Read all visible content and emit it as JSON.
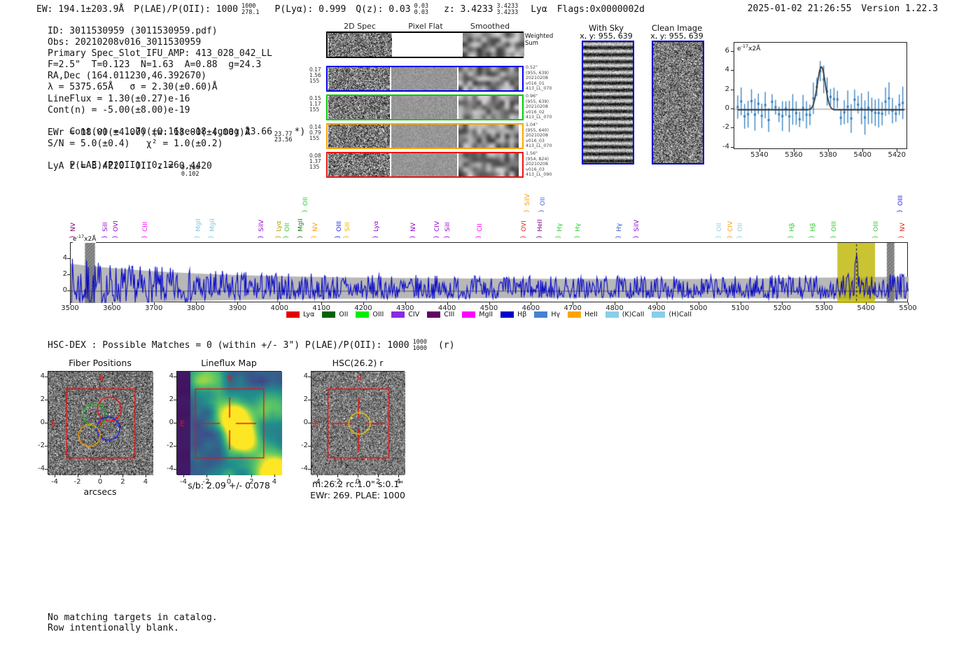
{
  "header": {
    "ew": "EW: 194.1±203.9Å",
    "plae_label": "P(LAE)/P(OII): 1000",
    "plae_hi": "1000",
    "plae_lo": "278.1",
    "plya": "P(Lyα): 0.999",
    "qz": "Q(z): 0.03",
    "qz_hi": "0.03",
    "qz_lo": "0.03",
    "z": "z: 3.4233",
    "z_hi": "3.4233",
    "z_lo": "3.4233",
    "line_type": "Lyα",
    "flags": "Flags:0x0000002d",
    "datetime": "2025-01-02 21:26:55",
    "version": "Version 1.22.3"
  },
  "info": {
    "id_line": "ID: 3011530959 (3011530959.pdf)",
    "obs_line": "Obs: 20210208v016_3011530959",
    "primary_line": "Primary Spec_Slot_IFU_AMP: 413_028_042_LL",
    "photometry_line": "F=2.5\"  T=0.123  N=1.63  A=0.88  g=24.3",
    "radec_line": "RA,Dec (164.011230,46.392670)",
    "lambda_line": "λ = 5375.65Å   σ = 2.30(±0.60)Å",
    "lineflux_line": "LineFlux = 1.30(±0.27)e-16",
    "contn_line": "Cont(n) = -5.00(±8.00)e-19",
    "contw_prefix": "Cont(w) = 1.70(±0.16)e-18 (gmag 23.66",
    "contw_hi": "23.77",
    "contw_lo": "23.56",
    "contw_suffix": "*)",
    "ewr_line": "EWr = 18.00(±4.00) (w: 18.00(±4.00))Å",
    "sn_line": "S/N = 5.0(±0.4)   χ² = 1.0(±0.2)",
    "plae_prefix": "P(LAE)/P(OII): 0.126",
    "plae_hi": "0.164",
    "plae_lo": "0.102",
    "z_line": "LyA z = 3.4220  OII z = 0.4420"
  },
  "cutout_grid": {
    "col_headers": [
      "2D Spec",
      "Pixel Flat",
      "Smoothed"
    ],
    "weighted_label": [
      "Weighted",
      "Sum"
    ],
    "rows": [
      {
        "color": "#0000ee",
        "left": [
          "0.17",
          "1.56",
          "155"
        ],
        "right": [
          "0.52\"",
          "(955, 639)",
          "20210208",
          "v016_01",
          "413_LL_070"
        ]
      },
      {
        "color": "#00cc00",
        "left": [
          "0.15",
          "1.17",
          "155"
        ],
        "right": [
          "0.96\"",
          "(955, 639)",
          "20210208",
          "v016_02",
          "413_LL_070"
        ]
      },
      {
        "color": "#ffa500",
        "left": [
          "0.14",
          "0.79",
          "155"
        ],
        "right": [
          "1.04\"",
          "(955, 640)",
          "20210208",
          "v016_03",
          "413_LL_070"
        ]
      },
      {
        "color": "#ee1111",
        "left": [
          "0.08",
          "1.37",
          "135"
        ],
        "right": [
          "1.56\"",
          "(954, 824)",
          "20210208",
          "v016_03",
          "413_LL_090"
        ]
      }
    ]
  },
  "sky_panels": {
    "with_sky": {
      "title": "With Sky",
      "coords": "x, y: 955, 639"
    },
    "clean": {
      "title": "Clean Image",
      "coords": "x, y: 955, 639"
    }
  },
  "hsc_dex_line": {
    "prefix": "HSC-DEX : Possible Matches = 0 (within +/- 3\")  P(LAE)/P(OII): 1000",
    "frac_hi": "1000",
    "frac_lo": "1000",
    "suffix": "(r)"
  },
  "footer": {
    "line1": "No matching targets in catalog.",
    "line2": "Row intentionally blank."
  },
  "chart_data": {
    "zoom_spectrum": {
      "type": "scatter",
      "title": "",
      "inplot_label": {
        "prefix": "e",
        "exp": "-17",
        "suffix": "x2Å"
      },
      "x_range": [
        5325,
        5426
      ],
      "y_range": [
        -4.3,
        6.6
      ],
      "x_ticks": [
        5340,
        5360,
        5380,
        5400,
        5420
      ],
      "y_ticks": [
        6,
        4,
        2,
        0,
        -2,
        -4
      ],
      "gaussian_fit": {
        "center": 5375.65,
        "sigma": 2.3,
        "amplitude": 4.5
      },
      "point_color": "#2d7cbf",
      "fit_color": "#2b2b2b",
      "note": "blue flux points with error bars scattered about 0, Gaussian emission-line fit peaking ~4.5 at 5375.65Å"
    },
    "full_spectrum": {
      "type": "line",
      "x_range": [
        3500,
        5500
      ],
      "x_ticks": [
        3500,
        3600,
        3700,
        3800,
        3900,
        4000,
        4100,
        4200,
        4300,
        4400,
        4500,
        4600,
        4700,
        4800,
        4900,
        5000,
        5100,
        5200,
        5300,
        5400,
        5500
      ],
      "y_ticks": [
        0,
        2,
        4
      ],
      "inplot_label": {
        "prefix": "e",
        "exp": "-17",
        "suffix": "x2Å"
      },
      "spectrum_color": "#0000cc",
      "error_band_color": "#b8b8b8",
      "detect_wavelength": 5375.65,
      "detect_peak": 5.3,
      "highlight_band": [
        5330,
        5420
      ],
      "highlight_color": "#bdb500",
      "masked_bands": [
        [
          3534,
          3558
        ],
        [
          5448,
          5466
        ]
      ],
      "note": "noisy flux spectrum, amplitude ~±3.3 at 3500Å decaying to ~±1.5, single emission line at 5375.65Å inside yellow band",
      "line_labels": [
        {
          "name": "NV",
          "wl": 3508,
          "color": "#7d007d",
          "raised": false
        },
        {
          "name": "SiII",
          "wl": 3585,
          "color": "#9400d3",
          "raised": false
        },
        {
          "name": "OVI",
          "wl": 3610,
          "color": "#9400d3",
          "raised": false
        },
        {
          "name": "CIII",
          "wl": 3680,
          "color": "#ff00ff",
          "raised": false
        },
        {
          "name": "MgII",
          "wl": 3806,
          "color": "#7ec8e3",
          "raised": false
        },
        {
          "name": "MgII",
          "wl": 3840,
          "color": "#7ec8e3",
          "raised": false
        },
        {
          "name": "SiIV",
          "wl": 3957,
          "color": "#9400d3",
          "raised": false
        },
        {
          "name": "Lyα",
          "wl": 3999,
          "color": "#b0a000",
          "raised": false
        },
        {
          "name": "OII",
          "wl": 4018,
          "color": "#2ecc2e",
          "raised": false
        },
        {
          "name": "MgII",
          "wl": 4051,
          "color": "#1e7d1e",
          "raised": false
        },
        {
          "name": "OII",
          "wl": 4063,
          "color": "#2ecc2e",
          "raised": true
        },
        {
          "name": "NV",
          "wl": 4085,
          "color": "#ff9900",
          "raised": false
        },
        {
          "name": "OIII",
          "wl": 4142,
          "color": "#2222ee",
          "raised": false
        },
        {
          "name": "SiII",
          "wl": 4162,
          "color": "#e8b000",
          "raised": false
        },
        {
          "name": "Lyα",
          "wl": 4231,
          "color": "#9400d3",
          "raised": false
        },
        {
          "name": "NV",
          "wl": 4320,
          "color": "#9400d3",
          "raised": false
        },
        {
          "name": "CIV",
          "wl": 4377,
          "color": "#9400d3",
          "raised": false
        },
        {
          "name": "SiII",
          "wl": 4402,
          "color": "#9400d3",
          "raised": false
        },
        {
          "name": "CII",
          "wl": 4478,
          "color": "#ff00ff",
          "raised": false
        },
        {
          "name": "OVI",
          "wl": 4584,
          "color": "#ee2222",
          "raised": false
        },
        {
          "name": "SiIV",
          "wl": 4592,
          "color": "#ff9900",
          "raised": true
        },
        {
          "name": "HeII",
          "wl": 4622,
          "color": "#800080",
          "raised": false
        },
        {
          "name": "OII",
          "wl": 4628,
          "color": "#4169e1",
          "raised": true
        },
        {
          "name": "Hγ",
          "wl": 4668,
          "color": "#2ecc2e",
          "raised": false
        },
        {
          "name": "Hγ",
          "wl": 4713,
          "color": "#2ecc2e",
          "raised": false
        },
        {
          "name": "Hγ",
          "wl": 4811,
          "color": "#3355cc",
          "raised": false
        },
        {
          "name": "SiIV",
          "wl": 4853,
          "color": "#9400d3",
          "raised": false
        },
        {
          "name": "OII",
          "wl": 5050,
          "color": "#87ceeb",
          "raised": false
        },
        {
          "name": "CIV",
          "wl": 5077,
          "color": "#ff9900",
          "raised": false
        },
        {
          "name": "OII",
          "wl": 5100,
          "color": "#87ceeb",
          "raised": false
        },
        {
          "name": "Hβ",
          "wl": 5223,
          "color": "#2ecc2e",
          "raised": false
        },
        {
          "name": "Hβ",
          "wl": 5273,
          "color": "#2ecc2e",
          "raised": false
        },
        {
          "name": "OIII",
          "wl": 5324,
          "color": "#2ecc2e",
          "raised": false
        },
        {
          "name": "OIII",
          "wl": 5424,
          "color": "#2ecc2e",
          "raised": false
        },
        {
          "name": "OIII",
          "wl": 5483,
          "color": "#2222ee",
          "raised": true
        },
        {
          "name": "NV",
          "wl": 5487,
          "color": "#ee2222",
          "raised": false
        }
      ],
      "legend": [
        {
          "label": "Lyα",
          "color": "#e50000"
        },
        {
          "label": "OII",
          "color": "#006400"
        },
        {
          "label": "OIII",
          "color": "#00ee00"
        },
        {
          "label": "CIV",
          "color": "#8a2be2"
        },
        {
          "label": "CIII",
          "color": "#660066"
        },
        {
          "label": "MgII",
          "color": "#ff00ff"
        },
        {
          "label": "Hβ",
          "color": "#0000cd"
        },
        {
          "label": "Hγ",
          "color": "#4682d0"
        },
        {
          "label": "HeII",
          "color": "#ffa500"
        },
        {
          "label": "(K)CaII",
          "color": "#87ceeb"
        },
        {
          "label": "(H)CaII",
          "color": "#87ceeb"
        }
      ]
    },
    "fiber_positions": {
      "type": "image-cutout",
      "title": "Fiber Positions",
      "xlabel": "arcsecs",
      "ticks": [
        -4,
        -2,
        0,
        2,
        4
      ],
      "ifu_square_arcsec": [
        -3,
        3
      ],
      "compass": {
        "n": "N",
        "e": "E"
      },
      "fibers": [
        {
          "color": "#ee1111",
          "x": 0.75,
          "y": 1.25,
          "r": 1.05
        },
        {
          "color": "#11bb11",
          "x": -0.55,
          "y": 0.75,
          "r": 1.0
        },
        {
          "color": "#2222ee",
          "x": 0.65,
          "y": -0.45,
          "r": 1.0
        },
        {
          "color": "#ee9900",
          "x": -1.0,
          "y": -1.05,
          "r": 0.95
        }
      ]
    },
    "lineflux_map": {
      "type": "heatmap",
      "title": "Lineflux Map",
      "caption": "s/b: 2.09 +/- 0.078",
      "ticks": [
        -4,
        -2,
        0,
        2,
        4
      ],
      "colormap": "viridis",
      "compass": {
        "n": "N",
        "e": "E"
      },
      "note": "bright lineflux blob just right/below of center, secondary blob bottom-right corner, red IFU square and crosshair"
    },
    "hsc_cutout": {
      "type": "image-cutout",
      "title": "HSC(26.2) r",
      "caption1": "m:26.2 rc:1.0\"  s:0.1\"",
      "caption2": "EWr: 269. PLAE: 1000",
      "ticks": [
        -4,
        -2,
        0,
        2,
        4
      ],
      "compass": {
        "n": "N",
        "e": "E"
      },
      "aperture": {
        "x": 0.1,
        "y": 0.0,
        "r": 1.05,
        "color": "#e8cc00"
      },
      "neighbor_circle": {
        "x": 0.85,
        "y": 4.6,
        "r": 1.2,
        "style": "white-dashed"
      }
    }
  }
}
